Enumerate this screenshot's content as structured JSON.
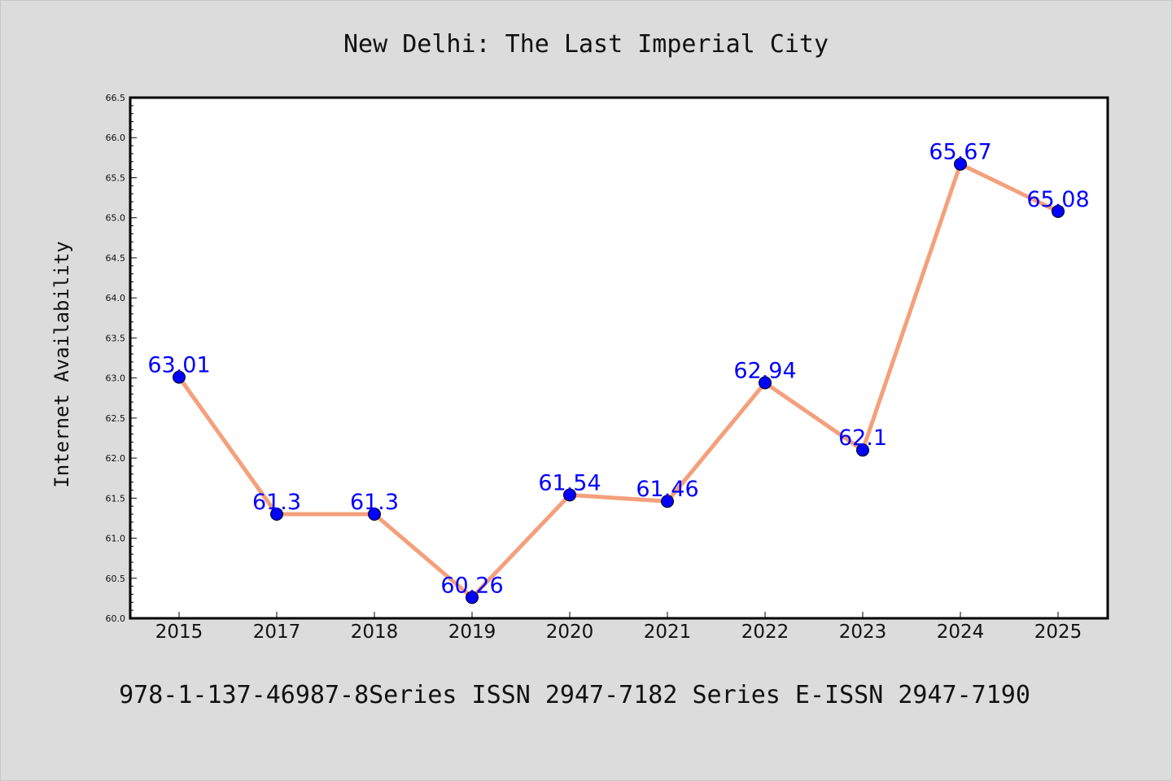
{
  "chart_data": {
    "type": "line",
    "title": "New Delhi: The Last Imperial City",
    "xlabel": "",
    "ylabel": "Internet Availability",
    "footer": "978-1-137-46987-8Series ISSN 2947-7182 Series E-ISSN 2947-7190",
    "categories": [
      "2015",
      "2017",
      "2018",
      "2019",
      "2020",
      "2021",
      "2022",
      "2023",
      "2024",
      "2025"
    ],
    "values": [
      63.01,
      61.3,
      61.3,
      60.26,
      61.54,
      61.46,
      62.94,
      62.1,
      65.67,
      65.08
    ],
    "data_labels": [
      "63.01",
      "61.3",
      "61.3",
      "60.26",
      "61.54",
      "61.46",
      "62.94",
      "62.1",
      "65.67",
      "65.08"
    ],
    "ylim": [
      60.0,
      66.5
    ],
    "y_ticks": [
      "60.0",
      "60.5",
      "61.0",
      "61.5",
      "62.0",
      "62.5",
      "63.0",
      "63.5",
      "64.0",
      "64.5",
      "65.0",
      "65.5",
      "66.0",
      "66.5"
    ],
    "grid": false,
    "legend": "none",
    "colors": {
      "line": "#f4a07c",
      "marker": "#0000ff",
      "label": "#0000ff",
      "page_background": "#dcdcdc",
      "plot_background": "#ffffff"
    }
  }
}
